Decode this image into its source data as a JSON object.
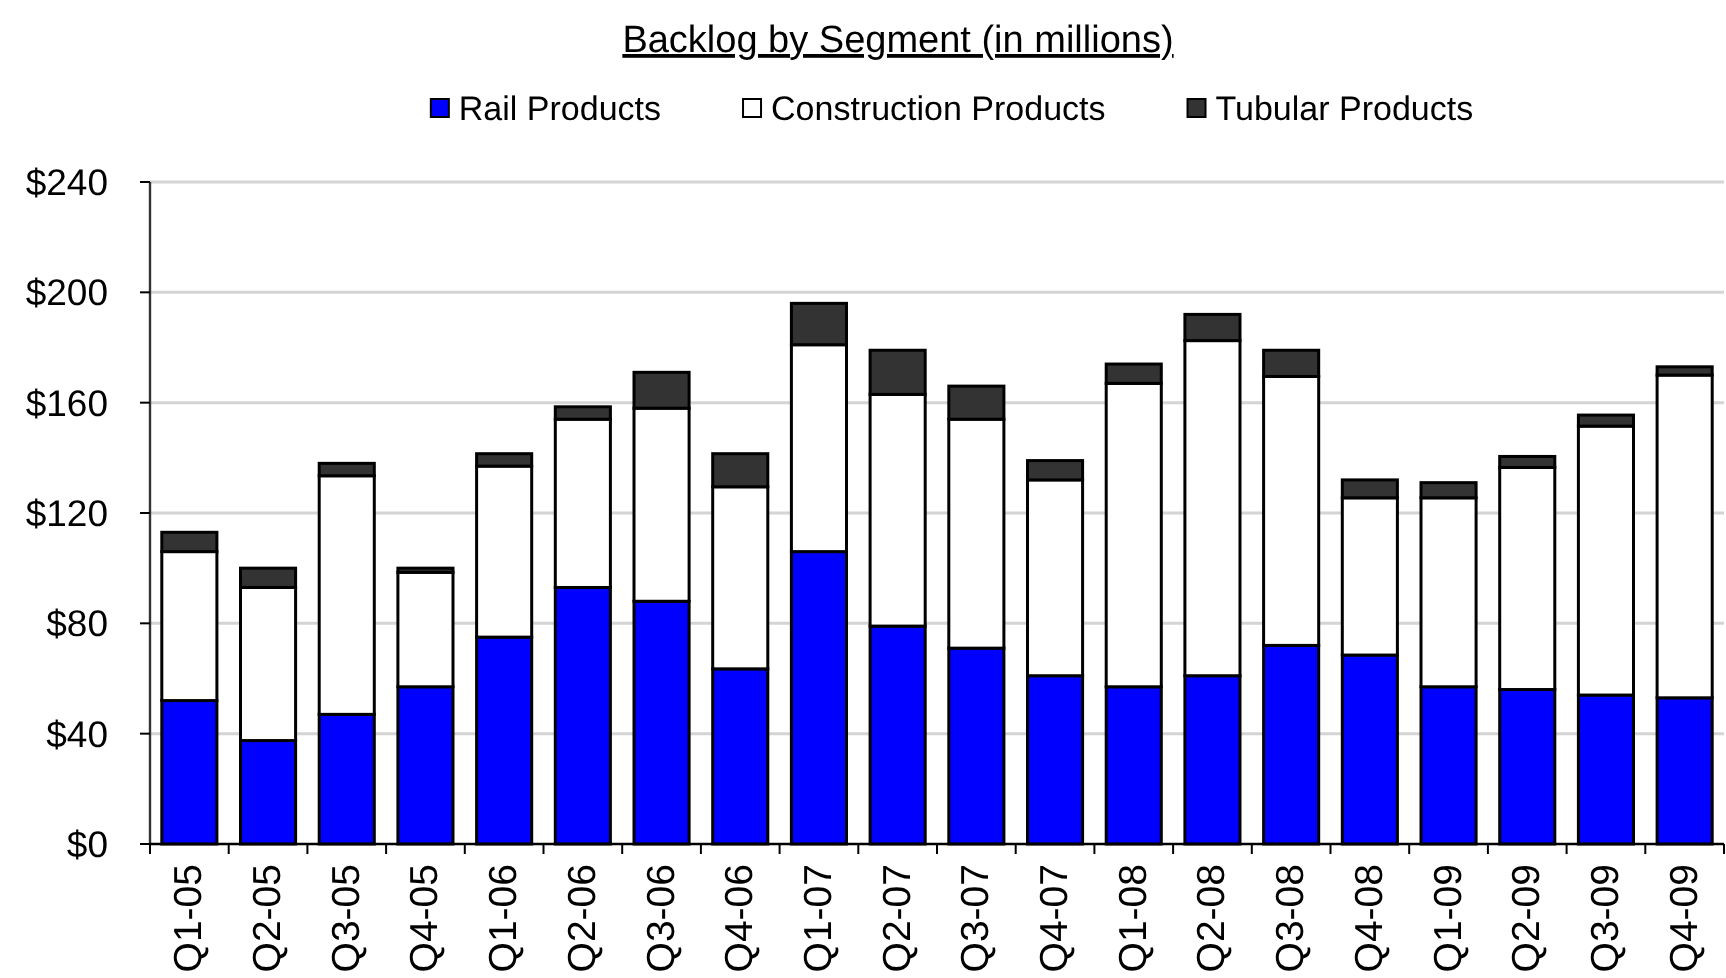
{
  "chart_data": {
    "type": "bar",
    "title": "Backlog by Segment (in millions)",
    "categories": [
      "Q1-05",
      "Q2-05",
      "Q3-05",
      "Q4-05",
      "Q1-06",
      "Q2-06",
      "Q3-06",
      "Q4-06",
      "Q1-07",
      "Q2-07",
      "Q3-07",
      "Q4-07",
      "Q1-08",
      "Q2-08",
      "Q3-08",
      "Q4-08",
      "Q1-09",
      "Q2-09",
      "Q3-09",
      "Q4-09"
    ],
    "stacked": true,
    "ylim": [
      0,
      240
    ],
    "yticks": [
      {
        "value": 0,
        "label": "$0"
      },
      {
        "value": 40,
        "label": "$40"
      },
      {
        "value": 80,
        "label": "$80"
      },
      {
        "value": 120,
        "label": "$120"
      },
      {
        "value": 160,
        "label": "$160"
      },
      {
        "value": 200,
        "label": "$200"
      },
      {
        "value": 240,
        "label": "$240"
      }
    ],
    "grid": "y",
    "legend": "top",
    "series": [
      {
        "name": "Rail Products",
        "color": "#0000ff",
        "values": [
          52,
          37.5,
          47,
          57,
          75,
          93,
          88,
          63.5,
          106,
          79,
          71,
          61,
          57,
          61,
          72,
          68.5,
          57,
          56,
          54,
          53
        ]
      },
      {
        "name": "Construction Products",
        "color": "#ffffff",
        "values": [
          54,
          55.5,
          86.5,
          41.5,
          62,
          61,
          70,
          66,
          75,
          84,
          83,
          71,
          110,
          121.5,
          97.5,
          57,
          68.5,
          80.5,
          97.5,
          117
        ]
      },
      {
        "name": "Tubular Products",
        "color": "#333333",
        "values": [
          7,
          7,
          4.5,
          1.5,
          4.5,
          4.5,
          13,
          12,
          15,
          16,
          12,
          7,
          7,
          9.5,
          9.5,
          6.5,
          5.5,
          4,
          4,
          3
        ]
      }
    ]
  }
}
